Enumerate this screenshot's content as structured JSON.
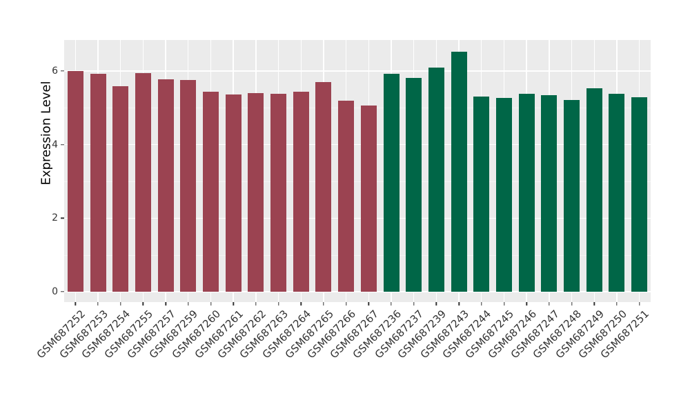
{
  "chart_data": {
    "type": "bar",
    "title": "",
    "xlabel": "",
    "ylabel": "Expression Level",
    "yticks": [
      "0",
      "2",
      "4",
      "6"
    ],
    "ytick_values": [
      0,
      2,
      4,
      6
    ],
    "yminor_values": [
      1,
      3,
      5
    ],
    "ylim": [
      -0.28,
      6.85
    ],
    "grid": "on",
    "legend": "none",
    "panel_background": "#EBEBEB",
    "major_gridline_color": "#FFFFFF",
    "minor_gridline_color": "#F4F4F4",
    "group_colors": [
      "#9B4351",
      "#006647"
    ],
    "categories": [
      "GSM687252",
      "GSM687253",
      "GSM687254",
      "GSM687255",
      "GSM687257",
      "GSM687259",
      "GSM687260",
      "GSM687261",
      "GSM687262",
      "GSM687263",
      "GSM687264",
      "GSM687265",
      "GSM687266",
      "GSM687267",
      "GSM687236",
      "GSM687237",
      "GSM687239",
      "GSM687243",
      "GSM687244",
      "GSM687245",
      "GSM687246",
      "GSM687247",
      "GSM687248",
      "GSM687249",
      "GSM687250",
      "GSM687251"
    ],
    "values": [
      6.0,
      5.93,
      5.59,
      5.95,
      5.78,
      5.76,
      5.43,
      5.36,
      5.4,
      5.38,
      5.43,
      5.7,
      5.2,
      5.06,
      5.93,
      5.82,
      6.1,
      6.52,
      5.31,
      5.27,
      5.38,
      5.35,
      5.21,
      5.54,
      5.38,
      5.29
    ],
    "bar_groups": [
      0,
      0,
      0,
      0,
      0,
      0,
      0,
      0,
      0,
      0,
      0,
      0,
      0,
      0,
      1,
      1,
      1,
      1,
      1,
      1,
      1,
      1,
      1,
      1,
      1,
      1
    ]
  }
}
